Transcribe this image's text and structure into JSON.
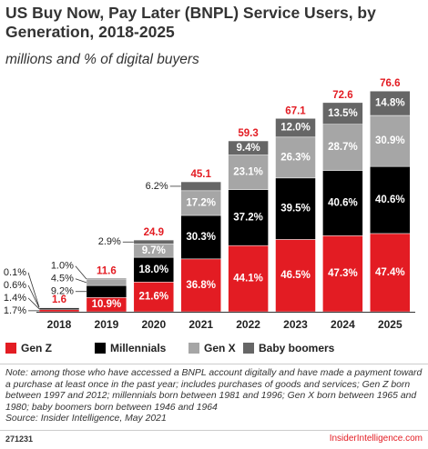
{
  "title": "US Buy Now, Pay Later (BNPL) Service Users, by Generation, 2018-2025",
  "subtitle": "millions and % of digital buyers",
  "note": "Note: among those who have accessed a BNPL account digitally and have made a payment toward a purchase at least once in the past year; includes purchases of goods and services; Gen Z born between 1997 and 2012; millennials born between 1981 and 1996; Gen X born between 1965 and 1980; baby boomers born between 1946 and 1964",
  "source": "Source: Insider Intelligence, May 2021",
  "footer": {
    "code": "271231",
    "site": "InsiderIntelligence.com"
  },
  "chart_data": {
    "type": "stacked_bar",
    "categories": [
      "2018",
      "2019",
      "2020",
      "2021",
      "2022",
      "2023",
      "2024",
      "2025"
    ],
    "totals": {
      "color": "#e31c23",
      "values": [
        1.6,
        11.6,
        24.9,
        45.1,
        59.3,
        67.1,
        72.6,
        76.6
      ]
    },
    "series": [
      {
        "name": "Gen Z",
        "color": "#e31c23",
        "values": [
          1.7,
          10.9,
          21.6,
          36.8,
          44.1,
          46.5,
          47.3,
          47.4
        ],
        "value_labels": [
          "1.7%",
          "10.9%",
          "21.6%",
          "36.8%",
          "44.1%",
          "46.5%",
          "47.3%",
          "47.4%"
        ]
      },
      {
        "name": "Millennials",
        "color": "#000000",
        "values": [
          1.4,
          9.2,
          18.0,
          30.3,
          37.2,
          39.5,
          40.6,
          40.6
        ],
        "value_labels": [
          "1.4%",
          "9.2%",
          "18.0%",
          "30.3%",
          "37.2%",
          "39.5%",
          "40.6%",
          "40.6%"
        ]
      },
      {
        "name": "Gen X",
        "color": "#a6a6a6",
        "values": [
          0.6,
          4.5,
          9.7,
          17.2,
          23.1,
          26.3,
          28.7,
          30.9
        ],
        "value_labels": [
          "0.6%",
          "4.5%",
          "9.7%",
          "17.2%",
          "23.1%",
          "26.3%",
          "28.7%",
          "30.9%"
        ]
      },
      {
        "name": "Baby boomers",
        "color": "#666666",
        "values": [
          0.1,
          1.0,
          2.9,
          6.2,
          9.4,
          12.0,
          13.5,
          14.8
        ],
        "value_labels": [
          "0.1%",
          "1.0%",
          "2.9%",
          "6.2%",
          "9.4%",
          "12.0%",
          "13.5%",
          "14.8%"
        ]
      }
    ]
  }
}
